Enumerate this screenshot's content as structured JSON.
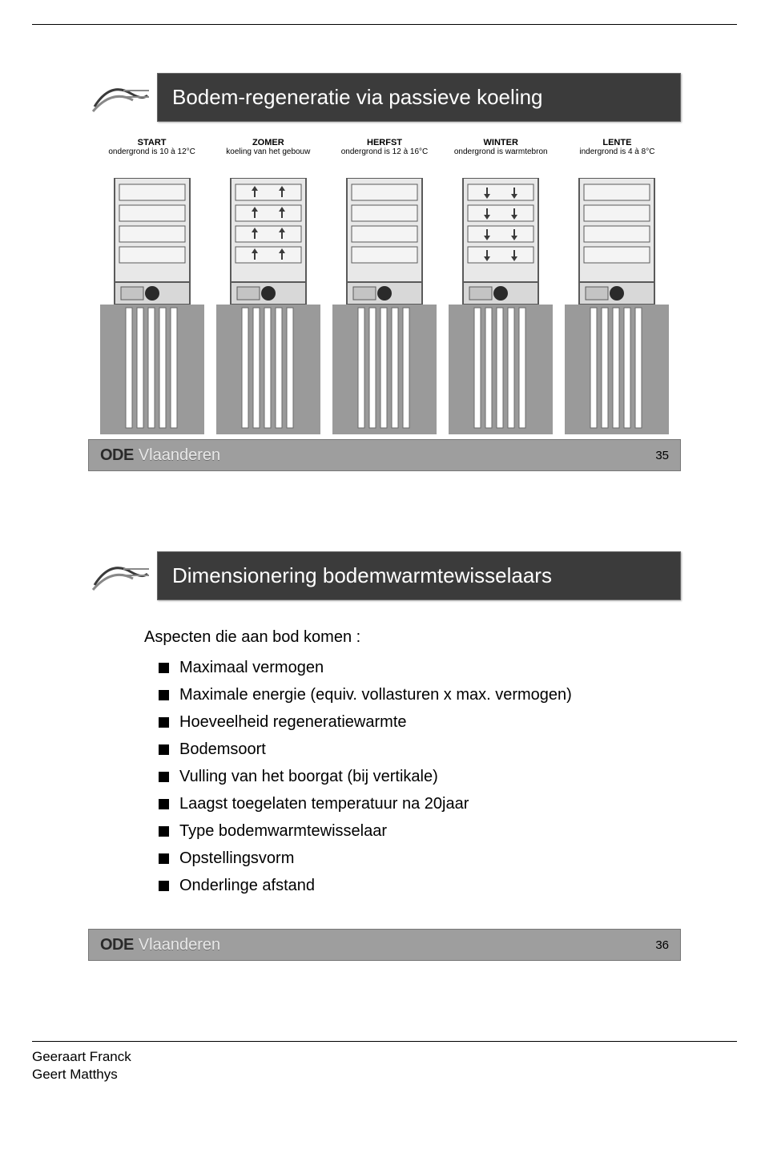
{
  "slide1": {
    "title": "Bodem-regeneratie via passieve koeling",
    "number": "35",
    "seasons": [
      {
        "name": "START",
        "sub": "ondergrond is 10 à 12°C",
        "arrows": "none"
      },
      {
        "name": "ZOMER",
        "sub": "koeling van het gebouw",
        "arrows": "up"
      },
      {
        "name": "HERFST",
        "sub": "ondergrond is 12 à 16°C",
        "arrows": "none"
      },
      {
        "name": "WINTER",
        "sub": "ondergrond is warmtebron",
        "arrows": "down"
      },
      {
        "name": "LENTE",
        "sub": "indergrond is 4 à 8°C",
        "arrows": "none"
      }
    ],
    "colors": {
      "building_fill": "#e8e8e8",
      "building_stroke": "#5a5a5a",
      "ground_fill": "#9a9a9a",
      "pipe_fill": "#ffffff",
      "pipe_stroke": "#6a6a6a",
      "pump_fill": "#2a2a2a",
      "arrow_fill": "#3a3a3a"
    }
  },
  "slide2": {
    "title": "Dimensionering bodemwarmtewisselaars",
    "number": "36",
    "intro": "Aspecten die aan bod komen :",
    "bullets": [
      "Maximaal vermogen",
      "Maximale energie (equiv. vollasturen x max. vermogen)",
      "Hoeveelheid regeneratiewarmte",
      "Bodemsoort",
      "Vulling van het boorgat (bij vertikale)",
      "Laagst toegelaten temperatuur na 20jaar",
      "Type bodemwarmtewisselaar",
      "Opstellingsvorm",
      "Onderlinge afstand"
    ]
  },
  "brand": {
    "bold": "ODE",
    "light": "Vlaanderen"
  },
  "authors": [
    "Geeraart Franck",
    "Geert Matthys"
  ]
}
